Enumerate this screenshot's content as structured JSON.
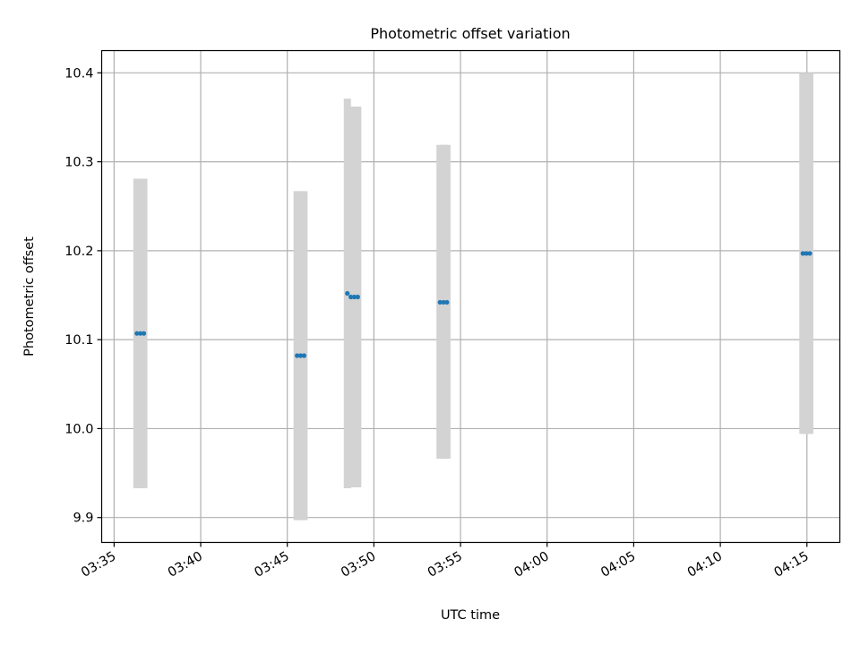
{
  "chart_data": {
    "type": "scatter",
    "title": "Photometric offset variation",
    "xlabel": "UTC time",
    "ylabel": "Photometric offset",
    "x_axis_kind": "time",
    "xlim": [
      "03:34:17",
      "04:16:54"
    ],
    "ylim": [
      9.872,
      10.425
    ],
    "xticks": [
      "03:35",
      "03:40",
      "03:45",
      "03:50",
      "03:55",
      "04:00",
      "04:05",
      "04:10",
      "04:15"
    ],
    "yticks": [
      9.9,
      10.0,
      10.1,
      10.2,
      10.3,
      10.4
    ],
    "ytick_labels": [
      "9.9",
      "10.0",
      "10.1",
      "10.2",
      "10.3",
      "10.4"
    ],
    "grid": true,
    "colors": {
      "marker": "#1f77b4",
      "errorbar": "#d3d3d3",
      "grid": "#b0b0b0"
    },
    "series": [
      {
        "points": [
          {
            "time": "03:36:19",
            "offset": 10.107,
            "err_low": 9.933,
            "err_high": 10.281
          },
          {
            "time": "03:36:31",
            "offset": 10.107,
            "err_low": 9.933,
            "err_high": 10.281
          },
          {
            "time": "03:36:43",
            "offset": 10.107,
            "err_low": 9.933,
            "err_high": 10.281
          },
          {
            "time": "03:45:34",
            "offset": 10.082,
            "err_low": 9.897,
            "err_high": 10.267
          },
          {
            "time": "03:45:46",
            "offset": 10.082,
            "err_low": 9.897,
            "err_high": 10.267
          },
          {
            "time": "03:45:58",
            "offset": 10.082,
            "err_low": 9.897,
            "err_high": 10.267
          },
          {
            "time": "03:48:28",
            "offset": 10.152,
            "err_low": 9.933,
            "err_high": 10.371
          },
          {
            "time": "03:48:40",
            "offset": 10.148,
            "err_low": 9.934,
            "err_high": 10.362
          },
          {
            "time": "03:48:52",
            "offset": 10.148,
            "err_low": 9.934,
            "err_high": 10.362
          },
          {
            "time": "03:49:04",
            "offset": 10.148,
            "err_low": 9.934,
            "err_high": 10.362
          },
          {
            "time": "03:53:49",
            "offset": 10.142,
            "err_low": 9.966,
            "err_high": 10.319
          },
          {
            "time": "03:54:01",
            "offset": 10.142,
            "err_low": 9.966,
            "err_high": 10.319
          },
          {
            "time": "03:54:13",
            "offset": 10.142,
            "err_low": 9.966,
            "err_high": 10.319
          },
          {
            "time": "04:14:46",
            "offset": 10.197,
            "err_low": 9.994,
            "err_high": 10.4
          },
          {
            "time": "04:14:58",
            "offset": 10.197,
            "err_low": 9.994,
            "err_high": 10.4
          },
          {
            "time": "04:15:10",
            "offset": 10.197,
            "err_low": 9.994,
            "err_high": 10.4
          }
        ]
      }
    ]
  }
}
